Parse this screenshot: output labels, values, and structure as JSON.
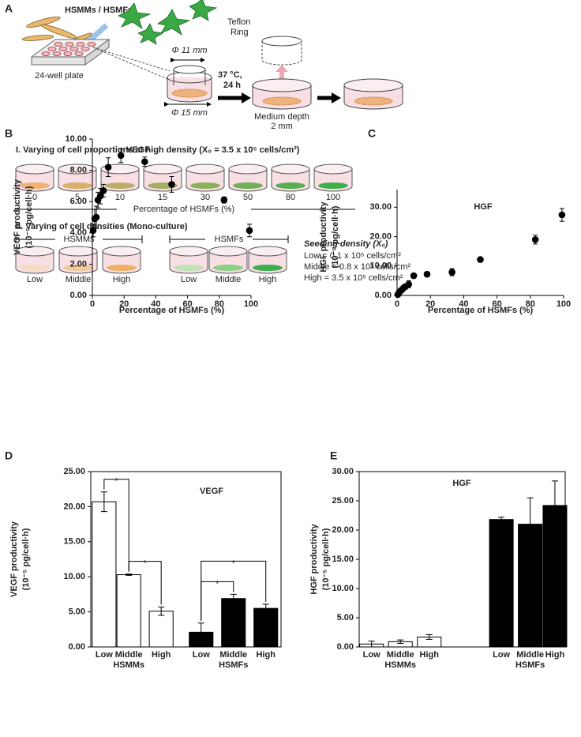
{
  "panel_a": {
    "label": "A",
    "cells_title": "HSMMs / HSMFs",
    "plate_label": "24-well plate",
    "ring_label": [
      "Teflon",
      "Ring"
    ],
    "inner_diameter": "Φ 11 mm",
    "outer_diameter": "Φ 15 mm",
    "incubation": [
      "37 °C,",
      "24 h"
    ],
    "medium_depth": [
      "Medium depth",
      "2 mm"
    ],
    "section_1": {
      "title": "I. Varying of cell proportions at high density (X₀ = 3.5 x 10⁵ cells/cm²)",
      "percentages": [
        0,
        5,
        10,
        15,
        30,
        50,
        80,
        100
      ],
      "axis_label": "Percentage of HSMFs (%)"
    },
    "section_2": {
      "title": "II. Varying of cell densities (Mono-culture)",
      "groups": [
        "HSMMs",
        "HSMFs"
      ],
      "densities": [
        "Low",
        "Middle",
        "High"
      ],
      "legend_title": "Seeding density (X₀)",
      "legend": [
        "Low = 0.1 x 10⁵ cells/cm²",
        "Middle = 0.8 x 10⁵ cells/cm²",
        "High = 3.5 x 10⁵ cells/cm²"
      ]
    }
  },
  "chart_data": [
    {
      "type": "scatter",
      "panel": "B",
      "title": "VEGF",
      "y_label": [
        "VEGF productivity",
        "(10⁻⁵ pg/cell·h)"
      ],
      "x_label": "Percentage of HSMFs (%)",
      "x": [
        0.5,
        1.5,
        2.5,
        3.5,
        5,
        7,
        10,
        18,
        33,
        50,
        83,
        99
      ],
      "values": [
        4.15,
        4.9,
        5.0,
        6.1,
        6.35,
        6.7,
        8.2,
        8.95,
        8.55,
        7.1,
        6.1,
        4.15
      ],
      "errors": [
        0.4,
        0.6,
        0.7,
        0.5,
        0.5,
        0.4,
        0.6,
        0.45,
        0.3,
        0.5,
        0.2,
        0.4
      ],
      "color": "#000000",
      "box": false,
      "xlim": [
        0,
        100
      ],
      "xticks": [
        0,
        20,
        40,
        60,
        80,
        100
      ],
      "ylim": [
        0,
        10
      ],
      "yticks": [
        {
          "value": 0,
          "label": "0.00"
        },
        {
          "value": 2,
          "label": "2.00"
        },
        {
          "value": 4,
          "label": "4.00"
        },
        {
          "value": 6,
          "label": "6.00"
        },
        {
          "value": 8,
          "label": "8.00"
        },
        {
          "value": 10,
          "label": "10.00"
        }
      ]
    },
    {
      "type": "scatter",
      "panel": "C",
      "title": "HGF",
      "y_label": [
        "HGF productivity",
        "(10⁻⁵ pg/cell·h)"
      ],
      "x_label": "Percentage of HSMFs (%)",
      "x": [
        0.5,
        1,
        2,
        3,
        4,
        5,
        7,
        10,
        18,
        33,
        50,
        83,
        99
      ],
      "values": [
        0.3,
        0.8,
        1.5,
        2.0,
        2.6,
        3.0,
        3.8,
        6.7,
        7.2,
        7.9,
        12.2,
        19.0,
        27.4
      ],
      "errors": [
        0.3,
        0.3,
        0.5,
        0.7,
        0.8,
        0.8,
        1.2,
        0.8,
        0.8,
        1.2,
        0.3,
        1.5,
        2.2
      ],
      "color": "#000000",
      "box": false,
      "xlim": [
        0,
        100
      ],
      "xticks": [
        0,
        20,
        40,
        60,
        80,
        100
      ],
      "ylim": [
        0,
        36
      ],
      "yticks": [
        {
          "value": 0,
          "label": "0.00"
        },
        {
          "value": 10,
          "label": "10.00"
        },
        {
          "value": 20,
          "label": "20.00"
        },
        {
          "value": 30,
          "label": "30.00"
        }
      ]
    },
    {
      "type": "bar",
      "panel": "D",
      "title": "VEGF",
      "y_label": [
        "VEGF productivity",
        "(10⁻⁵ pg/cell·h)"
      ],
      "groups": [
        {
          "name": "HSMMs",
          "color": "#ffffff",
          "categories": [
            "Low",
            "Middle",
            "High"
          ],
          "values": [
            20.7,
            10.3,
            5.1
          ],
          "errors": [
            1.4,
            0.1,
            0.6
          ]
        },
        {
          "name": "HSMFs",
          "color": "#000000",
          "categories": [
            "Low",
            "Middle",
            "High"
          ],
          "values": [
            2.1,
            6.9,
            5.5
          ],
          "errors": [
            1.3,
            0.6,
            0.6
          ]
        }
      ],
      "box": true,
      "ylim": [
        0,
        25
      ],
      "yticks": [
        {
          "value": 0,
          "label": "0.00"
        },
        {
          "value": 5,
          "label": "5.00"
        },
        {
          "value": 10,
          "label": "10.00"
        },
        {
          "value": 15,
          "label": "15.00"
        },
        {
          "value": 20,
          "label": "20.00"
        },
        {
          "value": 25,
          "label": "25.00"
        }
      ],
      "annotations": [
        "*",
        "*",
        "*",
        "*"
      ]
    },
    {
      "type": "bar",
      "panel": "E",
      "title": "HGF",
      "y_label": [
        "HGF productivity",
        "(10⁻⁵ pg/cell·h)"
      ],
      "groups": [
        {
          "name": "HSMMs",
          "color": "#ffffff",
          "categories": [
            "Low",
            "Middle",
            "High"
          ],
          "values": [
            0.5,
            0.9,
            1.7
          ],
          "errors": [
            0.5,
            0.3,
            0.4
          ]
        },
        {
          "name": "HSMFs",
          "color": "#000000",
          "categories": [
            "Low",
            "Middle",
            "High"
          ],
          "values": [
            21.8,
            21.0,
            24.2
          ],
          "errors": [
            0.4,
            4.5,
            4.2
          ]
        }
      ],
      "box": true,
      "ylim": [
        0,
        30
      ],
      "yticks": [
        {
          "value": 0,
          "label": "0.00"
        },
        {
          "value": 5,
          "label": "5.00"
        },
        {
          "value": 10,
          "label": "10.00"
        },
        {
          "value": 15,
          "label": "15.00"
        },
        {
          "value": 20,
          "label": "20.00"
        },
        {
          "value": 25,
          "label": "25.00"
        },
        {
          "value": 30,
          "label": "30.00"
        }
      ]
    }
  ]
}
